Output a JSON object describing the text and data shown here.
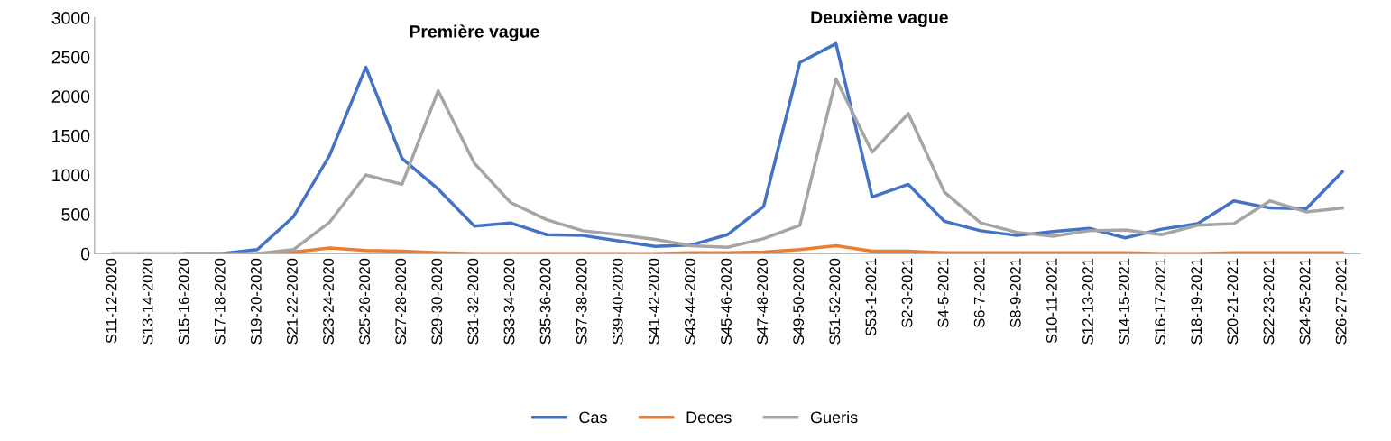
{
  "chart_data": {
    "type": "line",
    "categories": [
      "S11-12-2020",
      "S13-14-2020",
      "S15-16-2020",
      "S17-18-2020",
      "S19-20-2020",
      "S21-22-2020",
      "S23-24-2020",
      "S25-26-2020",
      "S27-28-2020",
      "S29-30-2020",
      "S31-32-2020",
      "S33-34-2020",
      "S35-36-2020",
      "S37-38-2020",
      "S39-40-2020",
      "S41-42-2020",
      "S43-44-2020",
      "S45-46-2020",
      "S47-48-2020",
      "S49-50-2020",
      "S51-52-2020",
      "S53-1-2021",
      "S2-3-2021",
      "S4-5-2021",
      "S6-7-2021",
      "S8-9-2021",
      "S10-11-2021",
      "S12-13-2021",
      "S14-15-2021",
      "S16-17-2021",
      "S18-19-2021",
      "S20-21-2021",
      "S22-23-2021",
      "S24-25-2021",
      "S26-27-2021"
    ],
    "series": [
      {
        "name": "Cas",
        "color": "#4472c4",
        "values": [
          null,
          null,
          0,
          0,
          50,
          470,
          1250,
          2370,
          1210,
          820,
          350,
          390,
          240,
          230,
          160,
          90,
          110,
          240,
          600,
          2430,
          2670,
          720,
          880,
          410,
          290,
          230,
          280,
          320,
          200,
          310,
          380,
          670,
          580,
          570,
          1040
        ]
      },
      {
        "name": "Deces",
        "color": "#ed7d31",
        "values": [
          null,
          null,
          null,
          null,
          0,
          20,
          70,
          40,
          30,
          10,
          0,
          0,
          0,
          0,
          0,
          0,
          10,
          10,
          20,
          50,
          100,
          30,
          30,
          10,
          10,
          10,
          10,
          10,
          10,
          0,
          0,
          10,
          10,
          10,
          10
        ]
      },
      {
        "name": "Gueris",
        "color": "#a5a5a5",
        "values": [
          0,
          0,
          0,
          0,
          0,
          50,
          400,
          1000,
          880,
          2070,
          1150,
          650,
          430,
          290,
          240,
          180,
          100,
          80,
          190,
          360,
          2220,
          1290,
          1780,
          780,
          390,
          270,
          220,
          290,
          300,
          240,
          360,
          380,
          670,
          530,
          580
        ]
      }
    ],
    "annotations": [
      "Première vague",
      "Deuxième vague"
    ],
    "ylim": [
      0,
      3000
    ],
    "yticks": [
      0,
      500,
      1000,
      1500,
      2000,
      2500,
      3000
    ],
    "grid": false,
    "legend": "bottom",
    "marker": "none",
    "line_style": "solid"
  }
}
